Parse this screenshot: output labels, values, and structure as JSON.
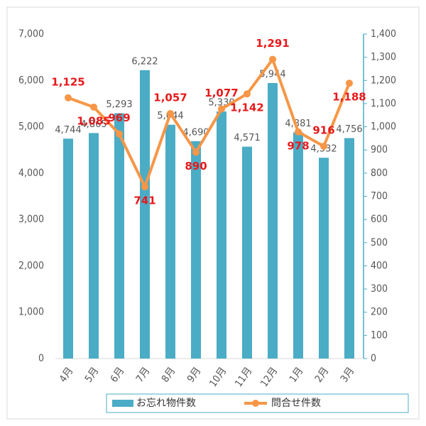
{
  "chart_data": {
    "type": "bar",
    "categories": [
      "4月",
      "5月",
      "6月",
      "7月",
      "8月",
      "9月",
      "10月",
      "11月",
      "12月",
      "1月",
      "2月",
      "3月"
    ],
    "series": [
      {
        "name": "お忘れ物件数",
        "type": "bar",
        "color": "#4bacc6",
        "axis": "y",
        "values": [
          4744,
          4865,
          5293,
          6222,
          5044,
          4690,
          5330,
          4571,
          5944,
          4881,
          4332,
          4756
        ],
        "value_labels": [
          "4,744",
          "4,865",
          "5,293",
          "6,222",
          "5,044",
          "4,690",
          "5,330",
          "4,571",
          "5,944",
          "4,881",
          "4,332",
          "4,756"
        ]
      },
      {
        "name": "問合せ件数",
        "type": "line",
        "color": "#f79646",
        "axis": "y2",
        "values": [
          1125,
          1085,
          969,
          741,
          1057,
          890,
          1077,
          1142,
          1291,
          978,
          916,
          1188
        ],
        "value_labels": [
          "1,125",
          "1,085",
          "969",
          "741",
          "1,057",
          "890",
          "1,077",
          "1,142",
          "1,291",
          "978",
          "916",
          "1,188"
        ]
      }
    ],
    "ylim": [
      0,
      7000
    ],
    "yticks": [
      0,
      {
        "value": 1000,
        "label": "1,000"
      },
      {
        "value": 2000,
        "label": "2,000"
      },
      {
        "value": 3000,
        "label": "3,000"
      },
      {
        "value": 4000,
        "label": "4,000"
      },
      {
        "value": 5000,
        "label": "5,000"
      },
      {
        "value": 6000,
        "label": "6,000"
      },
      {
        "value": 7000,
        "label": "7,000"
      }
    ],
    "y2lim": [
      0,
      1400
    ],
    "y2ticks": [
      0,
      100,
      200,
      300,
      400,
      500,
      600,
      700,
      800,
      900,
      {
        "value": 1000,
        "label": "1,000"
      },
      {
        "value": 1100,
        "label": "1,100"
      },
      {
        "value": 1200,
        "label": "1,200"
      },
      {
        "value": 1300,
        "label": "1,300"
      },
      {
        "value": 1400,
        "label": "1,400"
      }
    ],
    "legend": "bottom"
  }
}
